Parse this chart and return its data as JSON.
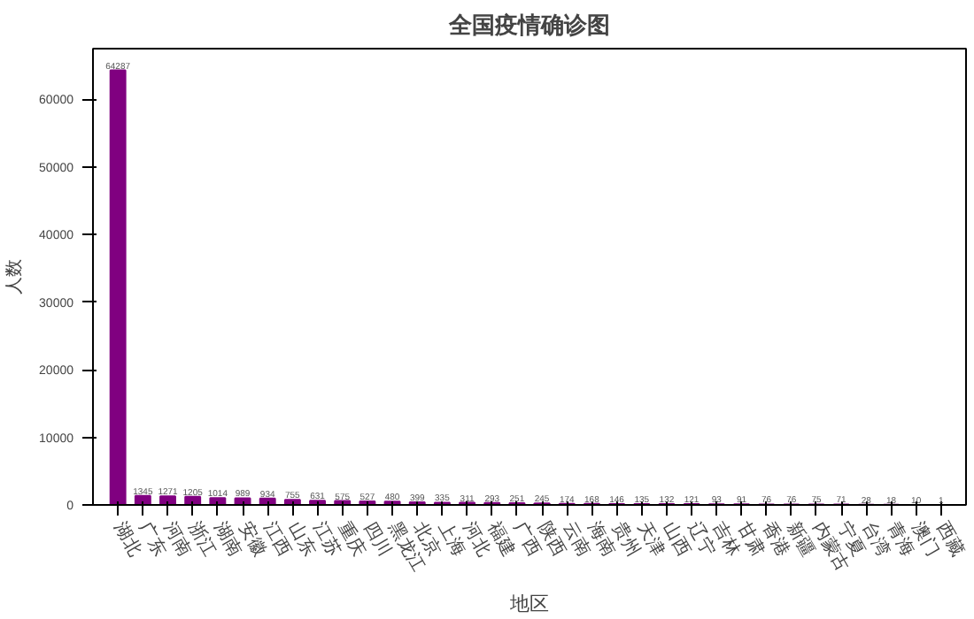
{
  "chart_data": {
    "type": "bar",
    "title": "全国疫情确诊图",
    "xlabel": "地区",
    "ylabel": "人数",
    "categories": [
      "湖北",
      "广东",
      "河南",
      "浙江",
      "湖南",
      "安徽",
      "江西",
      "山东",
      "江苏",
      "重庆",
      "四川",
      "黑龙江",
      "北京",
      "上海",
      "河北",
      "福建",
      "广西",
      "陕西",
      "云南",
      "海南",
      "贵州",
      "天津",
      "山西",
      "辽宁",
      "吉林",
      "甘肃",
      "香港",
      "新疆",
      "内蒙古",
      "宁夏",
      "台湾",
      "青海",
      "澳门",
      "西藏"
    ],
    "values": [
      64287,
      1345,
      1271,
      1205,
      1014,
      989,
      934,
      755,
      631,
      575,
      527,
      480,
      399,
      335,
      311,
      293,
      251,
      245,
      174,
      168,
      146,
      135,
      132,
      121,
      93,
      91,
      76,
      76,
      75,
      71,
      28,
      18,
      10,
      1
    ],
    "color": "#800080",
    "data_labels": true,
    "ylim": [
      0,
      67500
    ],
    "yticks": [
      0,
      10000,
      20000,
      30000,
      40000,
      50000,
      60000
    ],
    "grid": false
  }
}
